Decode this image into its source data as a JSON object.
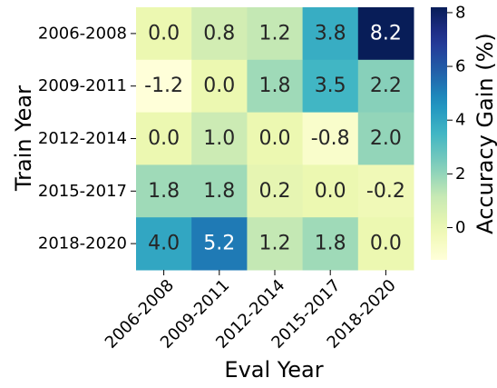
{
  "chart_data": {
    "type": "heatmap",
    "title": "",
    "xlabel": "Eval Year",
    "ylabel": "Train Year",
    "x_categories": [
      "2006-2008",
      "2009-2011",
      "2012-2014",
      "2015-2017",
      "2018-2020"
    ],
    "y_categories": [
      "2006-2008",
      "2009-2011",
      "2012-2014",
      "2015-2017",
      "2018-2020"
    ],
    "values": [
      [
        0.0,
        0.8,
        1.2,
        3.8,
        8.2
      ],
      [
        -1.2,
        0.0,
        1.8,
        3.5,
        2.2
      ],
      [
        0.0,
        1.0,
        0.0,
        -0.8,
        2.0
      ],
      [
        1.8,
        1.8,
        0.2,
        0.0,
        -0.2
      ],
      [
        4.0,
        5.2,
        1.2,
        1.8,
        0.0
      ]
    ],
    "value_labels": [
      [
        "0.0",
        "0.8",
        "1.2",
        "3.8",
        "8.2"
      ],
      [
        "-1.2",
        "0.0",
        "1.8",
        "3.5",
        "2.2"
      ],
      [
        "0.0",
        "1.0",
        "0.0",
        "-0.8",
        "2.0"
      ],
      [
        "1.8",
        "1.8",
        "0.2",
        "0.0",
        "-0.2"
      ],
      [
        "4.0",
        "5.2",
        "1.2",
        "1.8",
        "0.0"
      ]
    ],
    "colormap": "YlGnBu",
    "vmin": -1.2,
    "vmax": 8.2,
    "colorbar": {
      "label": "Accuracy Gain (%)",
      "ticks": [
        0,
        2,
        4,
        6,
        8
      ],
      "tick_labels": [
        "0",
        "2",
        "4",
        "6",
        "8"
      ]
    }
  }
}
